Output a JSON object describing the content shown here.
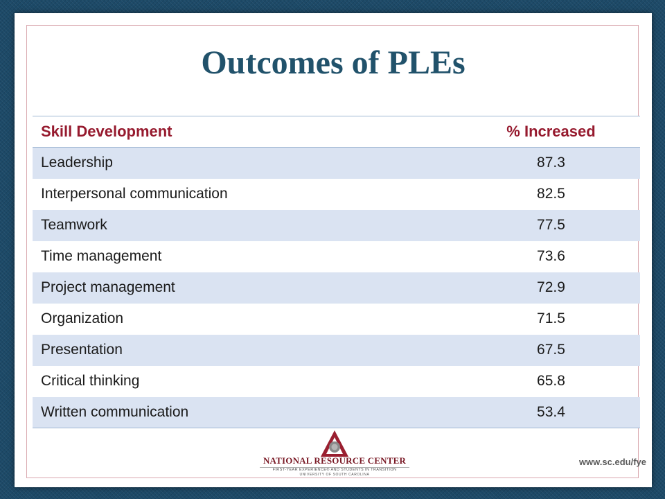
{
  "title": "Outcomes of PLEs",
  "table": {
    "headers": {
      "skill": "Skill Development",
      "percent": "% Increased"
    },
    "rows": [
      {
        "skill": "Leadership",
        "percent": "87.3"
      },
      {
        "skill": "Interpersonal communication",
        "percent": "82.5"
      },
      {
        "skill": "Teamwork",
        "percent": "77.5"
      },
      {
        "skill": "Time management",
        "percent": "73.6"
      },
      {
        "skill": "Project management",
        "percent": "72.9"
      },
      {
        "skill": "Organization",
        "percent": "71.5"
      },
      {
        "skill": "Presentation",
        "percent": "67.5"
      },
      {
        "skill": "Critical thinking",
        "percent": "65.8"
      },
      {
        "skill": "Written communication",
        "percent": "53.4"
      }
    ]
  },
  "footer": {
    "logo_name": "NATIONAL RESOURCE CENTER",
    "logo_tagline": "FIRST-YEAR EXPERIENCE® AND STUDENTS IN TRANSITION",
    "logo_university": "UNIVERSITY OF SOUTH CAROLINA",
    "website": "www.sc.edu/fye"
  },
  "colors": {
    "title": "#21526b",
    "header_text": "#961a2e",
    "row_shade": "#dae3f2",
    "background": "#1d4a68",
    "logo": "#7a1a26"
  },
  "icons": {
    "logo_mark": "triangle-circle-logo-icon"
  }
}
